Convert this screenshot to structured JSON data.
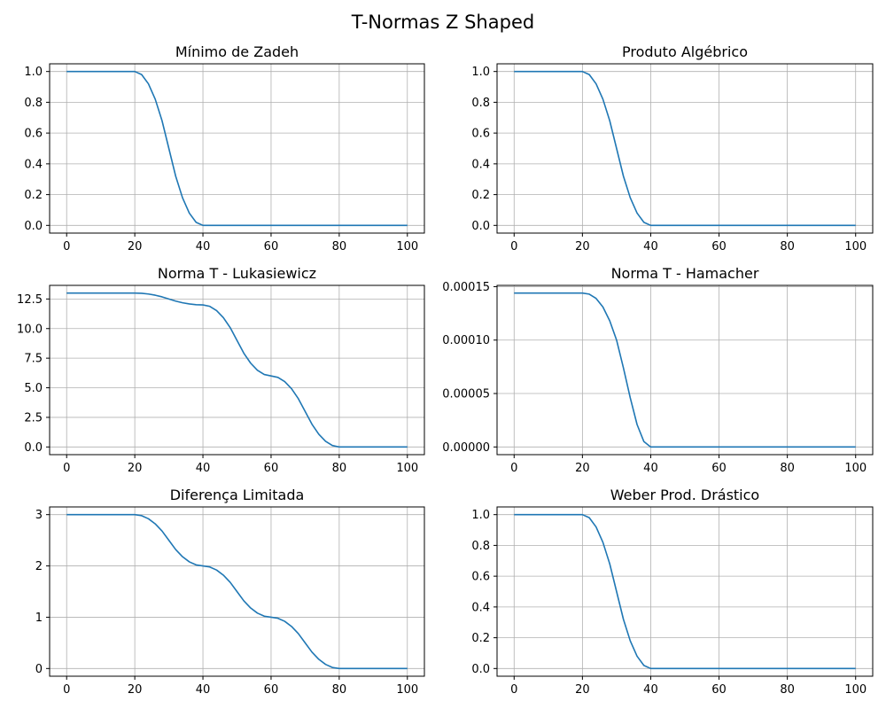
{
  "figure": {
    "title": "T-Normas Z Shaped",
    "line_color": "#1f77b4"
  },
  "chart_data": [
    {
      "type": "line",
      "title": "Mínimo de Zadeh",
      "xlabel": "",
      "ylabel": "",
      "xlim": [
        -5,
        105
      ],
      "ylim": [
        -0.05,
        1.05
      ],
      "xticks": [
        0,
        20,
        40,
        60,
        80,
        100
      ],
      "xtick_labels": [
        "0",
        "20",
        "40",
        "60",
        "80",
        "100"
      ],
      "yticks": [
        0,
        0.2,
        0.4,
        0.6,
        0.8,
        1.0
      ],
      "ytick_labels": [
        "0.0",
        "0.2",
        "0.4",
        "0.6",
        "0.8",
        "1.0"
      ],
      "grid": true,
      "series": [
        {
          "x": [
            0,
            10,
            20,
            22,
            24,
            26,
            28,
            30,
            32,
            34,
            36,
            38,
            40,
            50,
            60,
            70,
            80,
            90,
            100
          ],
          "y": [
            1.0,
            1.0,
            1.0,
            0.98,
            0.92,
            0.82,
            0.68,
            0.5,
            0.32,
            0.18,
            0.08,
            0.02,
            0.0,
            0.0,
            0.0,
            0.0,
            0.0,
            0.0,
            0.0
          ]
        }
      ]
    },
    {
      "type": "line",
      "title": "Produto Algébrico",
      "xlabel": "",
      "ylabel": "",
      "xlim": [
        -5,
        105
      ],
      "ylim": [
        -0.05,
        1.05
      ],
      "xticks": [
        0,
        20,
        40,
        60,
        80,
        100
      ],
      "xtick_labels": [
        "0",
        "20",
        "40",
        "60",
        "80",
        "100"
      ],
      "yticks": [
        0,
        0.2,
        0.4,
        0.6,
        0.8,
        1.0
      ],
      "ytick_labels": [
        "0.0",
        "0.2",
        "0.4",
        "0.6",
        "0.8",
        "1.0"
      ],
      "grid": true,
      "series": [
        {
          "x": [
            0,
            10,
            20,
            22,
            24,
            26,
            28,
            30,
            32,
            34,
            36,
            38,
            40,
            50,
            60,
            70,
            80,
            90,
            100
          ],
          "y": [
            1.0,
            1.0,
            1.0,
            0.98,
            0.92,
            0.82,
            0.68,
            0.5,
            0.32,
            0.18,
            0.08,
            0.02,
            0.0,
            0.0,
            0.0,
            0.0,
            0.0,
            0.0,
            0.0
          ]
        }
      ]
    },
    {
      "type": "line",
      "title": "Norma T - Lukasiewicz",
      "xlabel": "",
      "ylabel": "",
      "xlim": [
        -5,
        105
      ],
      "ylim": [
        -0.65,
        13.65
      ],
      "xticks": [
        0,
        20,
        40,
        60,
        80,
        100
      ],
      "xtick_labels": [
        "0",
        "20",
        "40",
        "60",
        "80",
        "100"
      ],
      "yticks": [
        0,
        2.5,
        5.0,
        7.5,
        10.0,
        12.5
      ],
      "ytick_labels": [
        "0.0",
        "2.5",
        "5.0",
        "7.5",
        "10.0",
        "12.5"
      ],
      "grid": true,
      "series": [
        {
          "x": [
            0,
            10,
            20,
            22,
            24,
            26,
            28,
            30,
            32,
            34,
            36,
            38,
            40,
            42,
            44,
            46,
            48,
            50,
            52,
            54,
            56,
            58,
            60,
            62,
            64,
            66,
            68,
            70,
            72,
            74,
            76,
            78,
            80,
            90,
            100
          ],
          "y": [
            13.0,
            13.0,
            13.0,
            12.98,
            12.92,
            12.82,
            12.68,
            12.5,
            12.32,
            12.18,
            12.08,
            12.02,
            12.0,
            11.88,
            11.52,
            10.92,
            10.08,
            9.0,
            7.92,
            7.08,
            6.48,
            6.12,
            6.0,
            5.88,
            5.52,
            4.92,
            4.08,
            3.0,
            1.92,
            1.08,
            0.48,
            0.12,
            0.0,
            0.0,
            0.0
          ]
        }
      ]
    },
    {
      "type": "line",
      "title": "Norma T - Hamacher",
      "xlabel": "",
      "ylabel": "",
      "xlim": [
        -5,
        105
      ],
      "ylim": [
        -7.2e-06,
        0.0001512
      ],
      "xticks": [
        0,
        20,
        40,
        60,
        80,
        100
      ],
      "xtick_labels": [
        "0",
        "20",
        "40",
        "60",
        "80",
        "100"
      ],
      "yticks": [
        0,
        5e-05,
        0.0001,
        0.00015
      ],
      "ytick_labels": [
        "0.00000",
        "0.00005",
        "0.00010",
        "0.00015"
      ],
      "grid": true,
      "series": [
        {
          "x": [
            0,
            10,
            20,
            22,
            24,
            26,
            28,
            30,
            32,
            34,
            36,
            38,
            40,
            50,
            60,
            70,
            80,
            90,
            100
          ],
          "y": [
            0.000144,
            0.000144,
            0.000144,
            0.000143,
            0.000139,
            0.000131,
            0.000118,
            0.0001,
            7.4e-05,
            4.6e-05,
            2.1e-05,
            5e-06,
            0.0,
            0.0,
            0.0,
            0.0,
            0.0,
            0.0,
            0.0
          ]
        }
      ]
    },
    {
      "type": "line",
      "title": "Diferença Limitada",
      "xlabel": "",
      "ylabel": "",
      "xlim": [
        -5,
        105
      ],
      "ylim": [
        -0.15,
        3.15
      ],
      "xticks": [
        0,
        20,
        40,
        60,
        80,
        100
      ],
      "xtick_labels": [
        "0",
        "20",
        "40",
        "60",
        "80",
        "100"
      ],
      "yticks": [
        0,
        1,
        2,
        3
      ],
      "ytick_labels": [
        "0",
        "1",
        "2",
        "3"
      ],
      "grid": true,
      "series": [
        {
          "x": [
            0,
            10,
            20,
            22,
            24,
            26,
            28,
            30,
            32,
            34,
            36,
            38,
            40,
            42,
            44,
            46,
            48,
            50,
            52,
            54,
            56,
            58,
            60,
            62,
            64,
            66,
            68,
            70,
            72,
            74,
            76,
            78,
            80,
            90,
            100
          ],
          "y": [
            3.0,
            3.0,
            3.0,
            2.98,
            2.92,
            2.82,
            2.68,
            2.5,
            2.32,
            2.18,
            2.08,
            2.02,
            2.0,
            1.98,
            1.92,
            1.82,
            1.68,
            1.5,
            1.32,
            1.18,
            1.08,
            1.02,
            1.0,
            0.98,
            0.92,
            0.82,
            0.68,
            0.5,
            0.32,
            0.18,
            0.08,
            0.02,
            0.0,
            0.0,
            0.0
          ]
        }
      ]
    },
    {
      "type": "line",
      "title": "Weber Prod. Drástico",
      "xlabel": "",
      "ylabel": "",
      "xlim": [
        -5,
        105
      ],
      "ylim": [
        -0.05,
        1.05
      ],
      "xticks": [
        0,
        20,
        40,
        60,
        80,
        100
      ],
      "xtick_labels": [
        "0",
        "20",
        "40",
        "60",
        "80",
        "100"
      ],
      "yticks": [
        0,
        0.2,
        0.4,
        0.6,
        0.8,
        1.0
      ],
      "ytick_labels": [
        "0.0",
        "0.2",
        "0.4",
        "0.6",
        "0.8",
        "1.0"
      ],
      "grid": true,
      "series": [
        {
          "x": [
            0,
            10,
            20,
            22,
            24,
            26,
            28,
            30,
            32,
            34,
            36,
            38,
            40,
            50,
            60,
            70,
            80,
            90,
            100
          ],
          "y": [
            1.0,
            1.0,
            1.0,
            0.98,
            0.92,
            0.82,
            0.68,
            0.5,
            0.32,
            0.18,
            0.08,
            0.02,
            0.0,
            0.0,
            0.0,
            0.0,
            0.0,
            0.0,
            0.0
          ]
        }
      ]
    }
  ]
}
